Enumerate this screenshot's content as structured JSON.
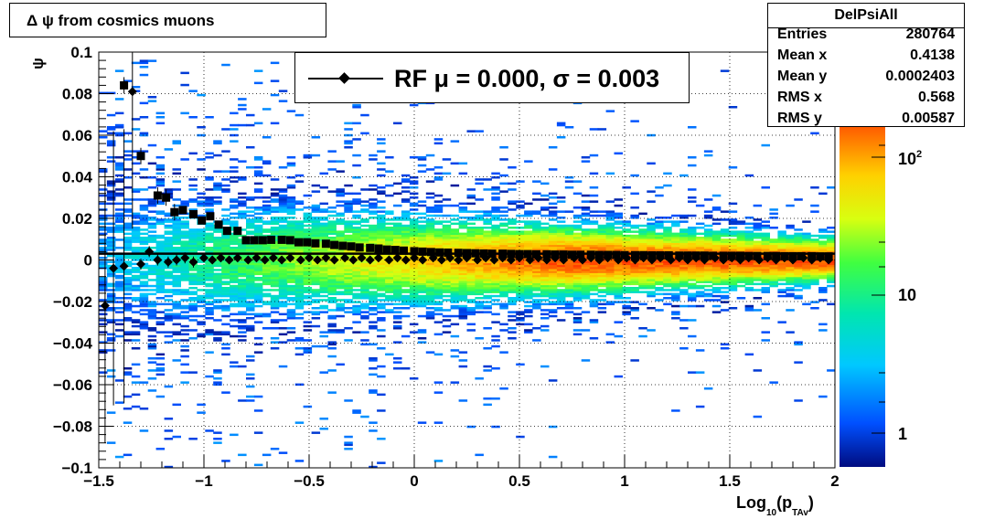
{
  "title": "Δ ψ from cosmics muons",
  "legend": {
    "label": "RF μ =  0.000, σ =   0.003"
  },
  "stats": {
    "name": "DelPsiAll",
    "rows": [
      {
        "key": "Entries",
        "value": "280764"
      },
      {
        "key": "Mean x",
        "value": "0.4138"
      },
      {
        "key": "Mean y",
        "value": "0.0002403"
      },
      {
        "key": "RMS x",
        "value": "0.568"
      },
      {
        "key": "RMS y",
        "value": "0.00587"
      }
    ]
  },
  "chart_data": {
    "type": "heatmap",
    "xlabel": "Log10(pTAv)",
    "ylabel": "ψ",
    "xlim": [
      -1.5,
      2
    ],
    "ylim": [
      -0.1,
      0.1
    ],
    "grid": true,
    "x_ticks": [
      "−1.5",
      "−1",
      "−0.5",
      "0",
      "0.5",
      "1",
      "1.5",
      "2"
    ],
    "y_ticks": [
      "−0.1",
      "−0.08",
      "−0.06",
      "−0.04",
      "−0.02",
      "0",
      "0.02",
      "0.04",
      "0.06",
      "0.08",
      "0.1"
    ],
    "colorbar": {
      "scale": "log",
      "labels": [
        "1",
        "10",
        "10^2"
      ]
    },
    "series": [
      {
        "type": "profile-mean",
        "marker": "diamond",
        "x": [
          -1.47,
          -1.43,
          -1.38,
          -1.34,
          -1.3,
          -1.26,
          -1.22,
          -1.17,
          -1.13,
          -1.09,
          -1.05,
          -1.0,
          -0.96,
          -0.92,
          -0.88,
          -0.84,
          -0.79,
          -0.75,
          -0.71,
          -0.67,
          -0.63,
          -0.59,
          -0.54,
          -0.5,
          -0.46,
          -0.42,
          -0.38,
          -0.33,
          -0.29,
          -0.25,
          -0.21,
          -0.17,
          -0.12,
          -0.08,
          -0.04,
          0.0,
          0.04,
          0.09,
          0.13,
          0.17,
          0.21,
          0.25,
          0.3,
          0.34,
          0.38,
          0.42,
          0.46,
          0.5,
          0.55,
          0.59,
          0.63,
          0.67,
          0.71,
          0.76,
          0.8,
          0.84,
          0.88,
          0.92,
          0.97,
          1.01,
          1.05,
          1.09,
          1.13,
          1.17,
          1.22,
          1.26,
          1.3,
          1.34,
          1.38,
          1.43,
          1.47,
          1.51,
          1.55,
          1.59,
          1.64,
          1.68,
          1.72,
          1.76,
          1.8,
          1.85,
          1.89,
          1.93,
          1.97
        ],
        "y": [
          -0.022,
          -0.004,
          -0.003,
          0.081,
          -0.002,
          0.004,
          0.0,
          -0.001,
          0.0,
          0.001,
          -0.001,
          0.001,
          0.0,
          0.001,
          0.0,
          0.001,
          0.0,
          0.001,
          0.0,
          0.001,
          0.0,
          0.001,
          0.0,
          0.001,
          0.0,
          0.001,
          0.0,
          0.001,
          0.0,
          0.001,
          0.0,
          0.001,
          0.0,
          0.001,
          0.0,
          0.001,
          0.0,
          0.001,
          0.0,
          0.001,
          0.0,
          0.001,
          0.0,
          0.001,
          0.0,
          0.001,
          0.0,
          0.001,
          0.0,
          0.001,
          0.0,
          0.001,
          0.0,
          0.001,
          0.0,
          0.001,
          0.0,
          0.001,
          0.0,
          0.001,
          0.0,
          0.001,
          0.0,
          0.001,
          0.0,
          0.001,
          0.0,
          0.001,
          0.0,
          0.001,
          0.0,
          0.001,
          0.0,
          0.001,
          0.0,
          0.001,
          0.0,
          0.001,
          0.0,
          0.001,
          0.0,
          0.001,
          0.0
        ]
      },
      {
        "type": "profile-rms",
        "marker": "square",
        "x": [
          -1.38,
          -1.3,
          -1.22,
          -1.18,
          -1.14,
          -1.1,
          -1.05,
          -1.01,
          -0.97,
          -0.93,
          -0.89,
          -0.84,
          -0.8,
          -0.76,
          -0.72,
          -0.68,
          -0.63,
          -0.59,
          -0.55,
          -0.51,
          -0.47,
          -0.42,
          -0.38,
          -0.34,
          -0.3,
          -0.26,
          -0.21,
          -0.17,
          -0.13,
          -0.09,
          -0.05,
          0.0,
          0.04,
          0.08,
          0.12,
          0.16,
          0.21,
          0.25,
          0.29,
          0.33,
          0.37,
          0.42,
          0.46,
          0.5,
          0.54,
          0.58,
          0.63,
          0.67,
          0.71,
          0.75,
          0.79,
          0.84,
          0.88,
          0.92,
          0.96,
          1.0,
          1.05,
          1.09,
          1.13,
          1.17,
          1.21,
          1.26,
          1.3,
          1.34,
          1.38,
          1.42,
          1.47,
          1.51,
          1.55,
          1.59,
          1.63,
          1.68,
          1.72,
          1.76,
          1.8,
          1.84,
          1.89,
          1.93,
          1.97
        ],
        "y": [
          0.084,
          0.05,
          0.031,
          0.03,
          0.023,
          0.024,
          0.022,
          0.019,
          0.021,
          0.017,
          0.014,
          0.014,
          0.0095,
          0.0095,
          0.0095,
          0.0097,
          0.0097,
          0.0095,
          0.0085,
          0.0085,
          0.008,
          0.0078,
          0.0072,
          0.0068,
          0.0065,
          0.006,
          0.0058,
          0.0055,
          0.005,
          0.0048,
          0.0045,
          0.0042,
          0.004,
          0.0038,
          0.0036,
          0.0035,
          0.0034,
          0.0033,
          0.0032,
          0.0031,
          0.003,
          0.003,
          0.0029,
          0.0028,
          0.0028,
          0.0027,
          0.0027,
          0.0026,
          0.0026,
          0.0025,
          0.0025,
          0.0025,
          0.0024,
          0.0024,
          0.0024,
          0.0023,
          0.0023,
          0.0023,
          0.0022,
          0.0022,
          0.0022,
          0.0021,
          0.0021,
          0.0021,
          0.0021,
          0.002,
          0.002,
          0.002,
          0.002,
          0.0019,
          0.0019,
          0.0019,
          0.0019,
          0.0018,
          0.0018,
          0.0018,
          0.0018,
          0.0017,
          0.0017
        ]
      }
    ]
  }
}
